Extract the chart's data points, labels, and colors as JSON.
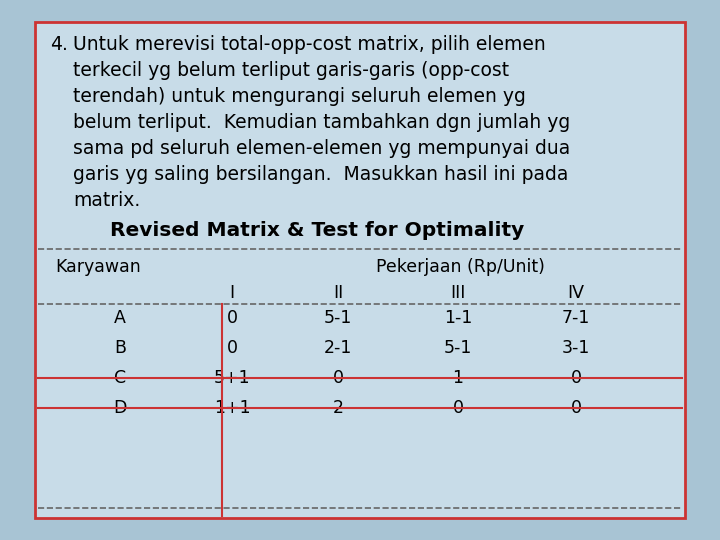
{
  "bg_outer": "#a8c4d4",
  "bg_inner": "#c8dce8",
  "border_color": "#cc3333",
  "title_number": "4.",
  "para_lines": [
    "Untuk merevisi total-opp-cost matrix, pilih elemen",
    "terkecil yg belum terliput garis-garis (opp-cost",
    "terendah) untuk mengurangi seluruh elemen yg",
    "belum terliput.  Kemudian tambahkan dgn jumlah yg",
    "sama pd seluruh elemen-elemen yg mempunyai dua",
    "garis yg saling bersilangan.  Masukkan hasil ini pada",
    "matrix."
  ],
  "subtitle": "Revised Matrix & Test for Optimality",
  "col_header_left": "Karyawan",
  "col_header_center": "Pekerjaan (Rp/Unit)",
  "col_sub_headers": [
    "I",
    "II",
    "III",
    "IV"
  ],
  "row_labels": [
    "A",
    "B",
    "C",
    "D"
  ],
  "table_data": [
    [
      "0",
      "5-1",
      "1-1",
      "7-1"
    ],
    [
      "0",
      "2-1",
      "5-1",
      "3-1"
    ],
    [
      "5+1",
      "0",
      "1",
      "0"
    ],
    [
      "1+1",
      "2",
      "0",
      "0"
    ]
  ],
  "line_color": "#cc3333",
  "text_color": "#000000",
  "dashed_line_color": "#666666",
  "font_size_para": 13.5,
  "font_size_table": 12.5,
  "font_size_subtitle": 14.5
}
